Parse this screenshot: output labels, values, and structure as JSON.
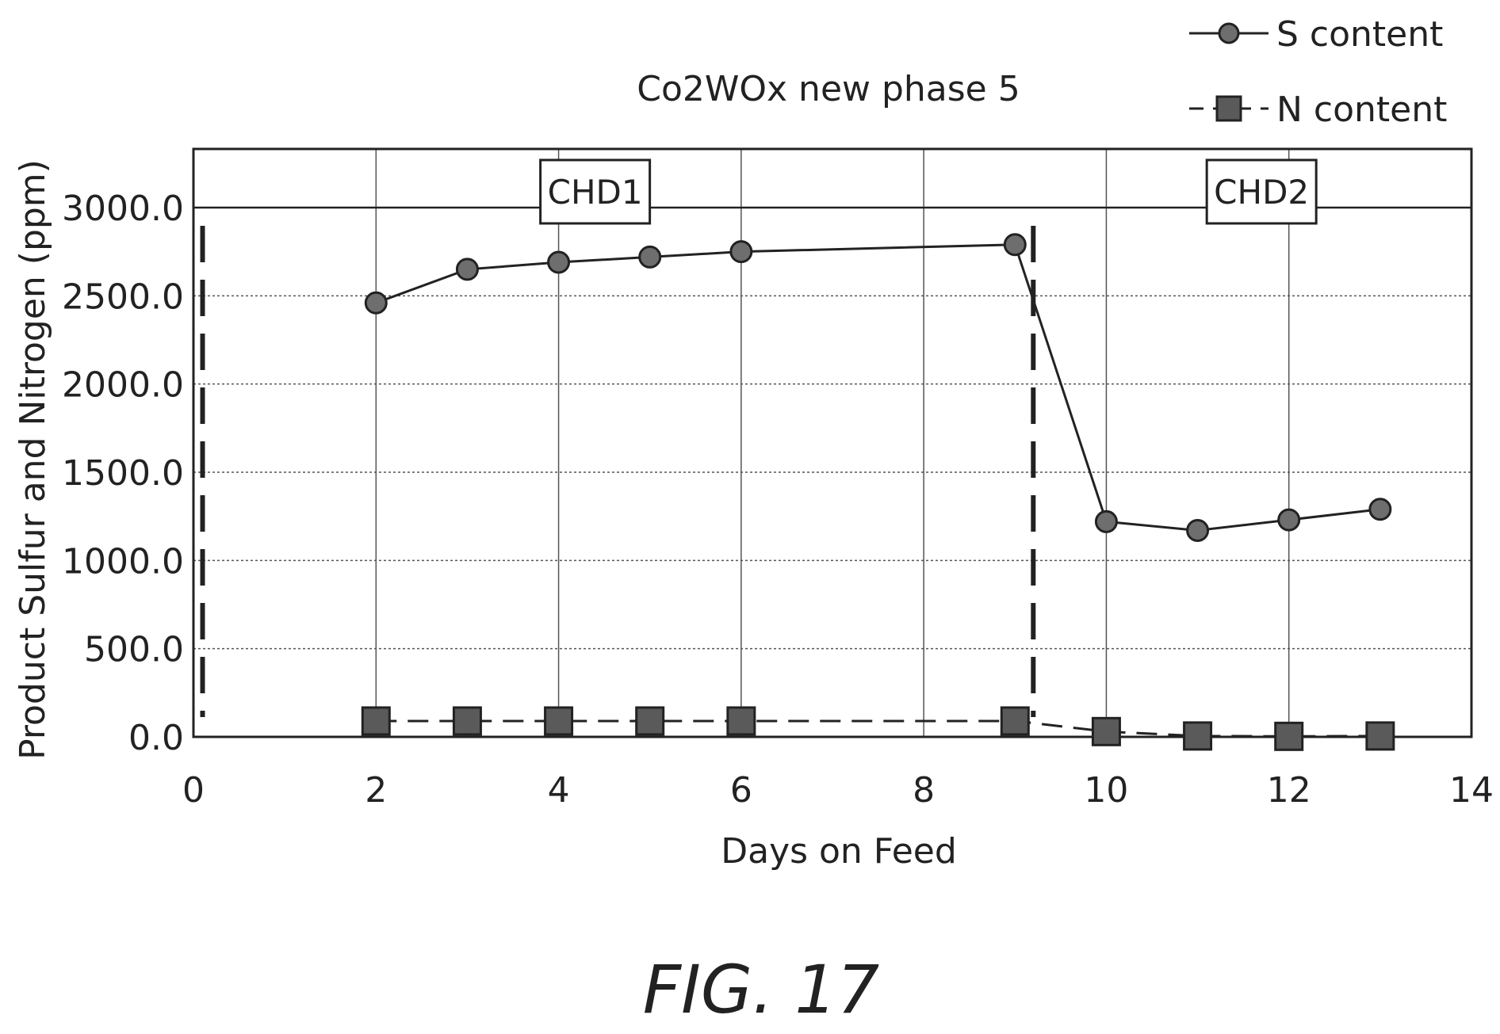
{
  "chart_data": {
    "type": "line",
    "title": "Co2WOx new phase 5",
    "xlabel": "Days on Feed",
    "ylabel": "Product Sulfur and Nitrogen (ppm)",
    "xlim": [
      0,
      14
    ],
    "ylim": [
      0,
      3000
    ],
    "xticks": [
      0,
      2,
      4,
      6,
      8,
      10,
      12,
      14
    ],
    "yticks": [
      0,
      500,
      1000,
      1500,
      2000,
      2500,
      3000
    ],
    "xtick_labels": [
      "0",
      "2",
      "4",
      "6",
      "8",
      "10",
      "12",
      "14"
    ],
    "ytick_labels": [
      "0.0",
      "500.0",
      "1000.0",
      "1500.0",
      "2000.0",
      "2500.0",
      "3000.0"
    ],
    "grid": true,
    "legend_position": "top-right",
    "series": [
      {
        "name": "S content",
        "marker": "circle",
        "line": "solid",
        "x": [
          2,
          3,
          4,
          5,
          6,
          9,
          10,
          11,
          12,
          13
        ],
        "y": [
          2460,
          2650,
          2690,
          2720,
          2750,
          2790,
          1220,
          1170,
          1230,
          1290
        ]
      },
      {
        "name": "N content",
        "marker": "square",
        "line": "dashed",
        "x": [
          2,
          3,
          4,
          5,
          6,
          9,
          10,
          11,
          12,
          13
        ],
        "y": [
          90,
          90,
          90,
          90,
          90,
          90,
          30,
          5,
          3,
          5
        ]
      }
    ],
    "annotations": [
      {
        "text": "CHD1",
        "x": 4.4,
        "y": 3090
      },
      {
        "text": "CHD2",
        "x": 11.7,
        "y": 3090
      }
    ],
    "vertical_markers": [
      0.1,
      9.2
    ]
  },
  "figure_label": "FIG. 17"
}
